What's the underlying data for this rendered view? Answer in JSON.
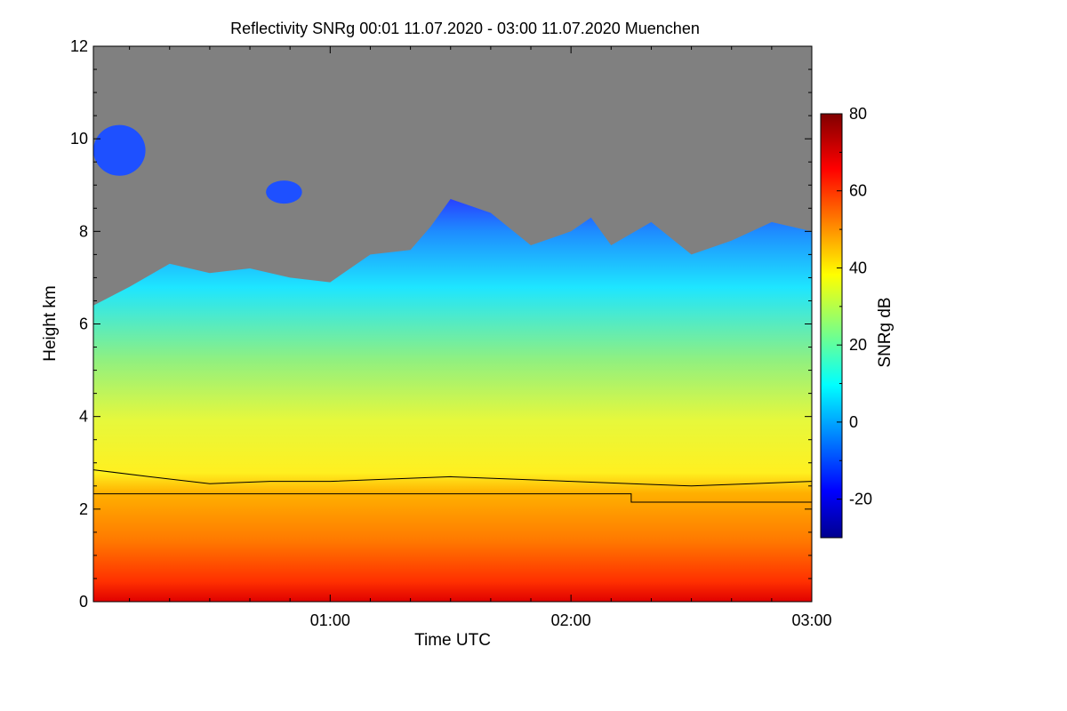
{
  "chart_data": {
    "type": "heatmap",
    "title": "Reflectivity SNRg   00:01 11.07.2020 - 03:00 11.07.2020 Muenchen",
    "xlabel": "Time UTC",
    "ylabel": "Height km",
    "colorbar_label": "SNRg dB",
    "xlim": [
      "00:01",
      "03:00"
    ],
    "ylim": [
      0,
      12
    ],
    "x_ticks": [
      "01:00",
      "02:00",
      "03:00"
    ],
    "y_ticks": [
      0,
      2,
      4,
      6,
      8,
      10,
      12
    ],
    "colorbar_range": [
      -30,
      80
    ],
    "colorbar_ticks": [
      -20,
      0,
      20,
      40,
      60,
      80
    ],
    "colormap": "jet",
    "no_data_color": "#808080",
    "cloud_top_km": {
      "t_min": [
        1,
        10,
        20,
        30,
        40,
        50,
        60,
        70,
        80,
        85,
        90,
        100,
        110,
        120,
        125,
        130,
        140,
        150,
        160,
        170,
        180
      ],
      "height": [
        6.4,
        6.8,
        7.3,
        7.1,
        7.2,
        7.0,
        6.9,
        7.5,
        7.6,
        8.1,
        8.7,
        8.4,
        7.7,
        8.0,
        8.3,
        7.7,
        8.2,
        7.5,
        7.8,
        8.2,
        8.0
      ]
    },
    "high_cloud_patches_km": [
      {
        "t_min": [
          1,
          14
        ],
        "height": [
          9.2,
          10.3
        ]
      },
      {
        "t_min": [
          44,
          53
        ],
        "height": [
          8.6,
          9.1
        ]
      }
    ],
    "melting_layer_km": {
      "t_min": [
        1,
        15,
        30,
        45,
        60,
        75,
        90,
        105,
        120,
        135,
        150,
        165,
        180
      ],
      "height": [
        2.85,
        2.7,
        2.55,
        2.6,
        2.6,
        2.65,
        2.7,
        2.65,
        2.6,
        2.55,
        2.5,
        2.55,
        2.6
      ]
    },
    "reference_line_km": {
      "t_min": [
        1,
        135,
        135,
        180
      ],
      "height": [
        2.33,
        2.33,
        2.15,
        2.15
      ]
    }
  }
}
